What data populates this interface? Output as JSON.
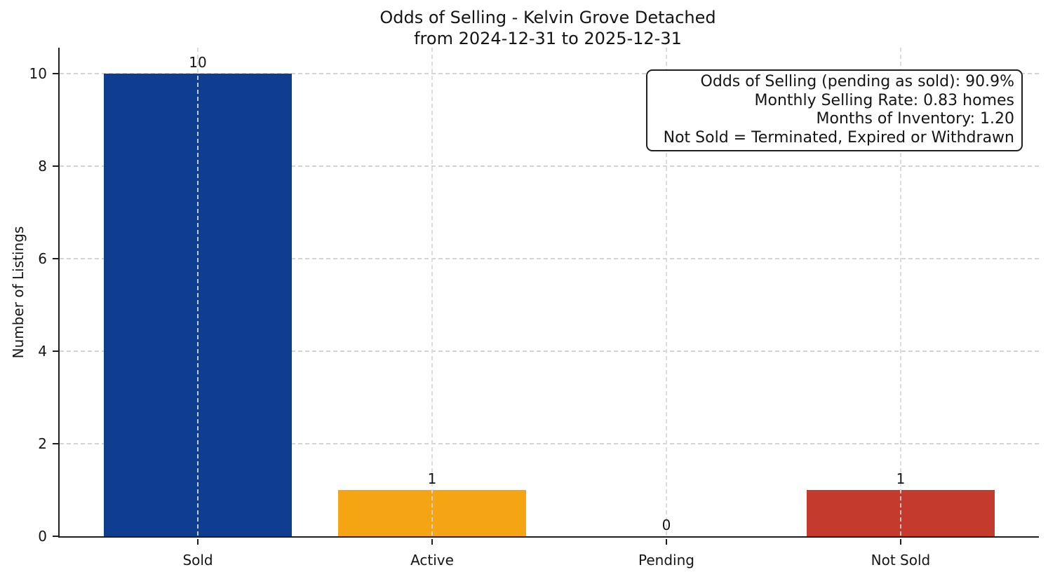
{
  "chart_data": {
    "type": "bar",
    "title_line1": "Odds of Selling - Kelvin Grove Detached",
    "title_line2": "from 2024-12-31 to 2025-12-31",
    "ylabel": "Number of Listings",
    "xlabel": "",
    "categories": [
      "Sold",
      "Active",
      "Pending",
      "Not Sold"
    ],
    "values": [
      10,
      1,
      0,
      1
    ],
    "value_labels": [
      "10",
      "1",
      "0",
      "1"
    ],
    "bar_colors": [
      "#0f3e90",
      "#f5a413",
      null,
      "#c43b2d"
    ],
    "yticks": [
      0,
      2,
      4,
      6,
      8,
      10
    ],
    "ylim": [
      0,
      10.56
    ],
    "grid": true,
    "legend_position": "none",
    "annotation": {
      "lines": [
        "Odds of Selling (pending as sold): 90.9%",
        "Monthly Selling Rate: 0.83 homes",
        "Months of Inventory: 1.20",
        "Not Sold = Terminated, Expired or Withdrawn"
      ]
    }
  }
}
